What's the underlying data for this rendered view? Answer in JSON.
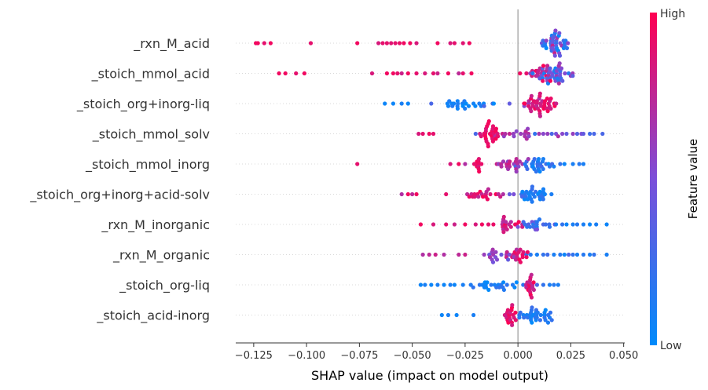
{
  "chart_data": {
    "type": "scatter",
    "subtype": "shap-beeswarm",
    "title": "",
    "xlabel": "SHAP value (impact on model output)",
    "ylabel": "",
    "xlim": [
      -0.1335,
      0.0505
    ],
    "xticks": [
      -0.125,
      -0.1,
      -0.075,
      -0.05,
      -0.025,
      0.0,
      0.025,
      0.05
    ],
    "xtick_labels": [
      "−0.125",
      "−0.100",
      "−0.075",
      "−0.050",
      "−0.025",
      "0.000",
      "0.025",
      "0.050"
    ],
    "zero_line": 0.0,
    "grid": false,
    "colorbar": {
      "title": "Feature value",
      "high_label": "High",
      "low_label": "Low",
      "high_color": "#ff0052",
      "mid_color": "#7b4fd9",
      "low_color": "#008bfb"
    },
    "features": [
      {
        "name": "_rxn_M_acid",
        "clusters": [
          {
            "center": 0.017,
            "spread": 0.004,
            "n": 38,
            "vmin": 0.0,
            "vmax": 0.55
          },
          {
            "center": 0.018,
            "spread": 0.002,
            "n": 6,
            "vmin": 0.55,
            "vmax": 0.8
          }
        ],
        "singles": [
          [
            -0.124,
            0.95
          ],
          [
            -0.123,
            0.95
          ],
          [
            -0.12,
            0.9
          ],
          [
            -0.117,
            0.95
          ],
          [
            -0.098,
            0.9
          ],
          [
            -0.076,
            0.95
          ],
          [
            -0.066,
            0.85
          ],
          [
            -0.064,
            0.9
          ],
          [
            -0.062,
            0.9
          ],
          [
            -0.06,
            0.88
          ],
          [
            -0.058,
            0.9
          ],
          [
            -0.056,
            0.92
          ],
          [
            -0.054,
            0.95
          ],
          [
            -0.051,
            0.95
          ],
          [
            -0.048,
            0.85
          ],
          [
            -0.038,
            0.95
          ],
          [
            -0.032,
            0.85
          ],
          [
            -0.03,
            0.9
          ],
          [
            -0.026,
            0.88
          ],
          [
            -0.023,
            0.95
          ]
        ]
      },
      {
        "name": "_stoich_mmol_acid",
        "clusters": [
          {
            "center": 0.016,
            "spread": 0.005,
            "n": 46,
            "vmin": 0.05,
            "vmax": 0.75
          },
          {
            "center": 0.012,
            "spread": 0.003,
            "n": 12,
            "vmin": 0.75,
            "vmax": 1.0
          }
        ],
        "singles": [
          [
            -0.113,
            0.95
          ],
          [
            -0.11,
            0.95
          ],
          [
            -0.105,
            0.9
          ],
          [
            -0.101,
            0.95
          ],
          [
            -0.069,
            0.85
          ],
          [
            -0.062,
            0.95
          ],
          [
            -0.059,
            0.95
          ],
          [
            -0.057,
            0.9
          ],
          [
            -0.055,
            0.8
          ],
          [
            -0.052,
            0.95
          ],
          [
            -0.048,
            0.9
          ],
          [
            -0.044,
            0.85
          ],
          [
            -0.04,
            0.9
          ],
          [
            -0.038,
            0.8
          ],
          [
            -0.033,
            0.95
          ],
          [
            -0.028,
            0.75
          ],
          [
            -0.026,
            0.9
          ],
          [
            -0.022,
            0.95
          ],
          [
            0.001,
            0.95
          ],
          [
            0.004,
            0.9
          ]
        ]
      },
      {
        "name": "_stoich_org+inorg-liq",
        "clusters": [
          {
            "center": 0.011,
            "spread": 0.004,
            "n": 40,
            "vmin": 0.7,
            "vmax": 1.0
          },
          {
            "center": -0.028,
            "spread": 0.006,
            "n": 22,
            "vmin": 0.0,
            "vmax": 0.15
          }
        ],
        "singles": [
          [
            -0.063,
            0.05
          ],
          [
            -0.059,
            0.05
          ],
          [
            -0.055,
            0.1
          ],
          [
            -0.052,
            0.05
          ],
          [
            -0.041,
            0.3
          ],
          [
            -0.016,
            0.3
          ],
          [
            -0.012,
            0.25
          ],
          [
            -0.004,
            0.4
          ],
          [
            0.003,
            0.55
          ],
          [
            0.005,
            0.6
          ]
        ]
      },
      {
        "name": "_stoich_mmol_solv",
        "clusters": [
          {
            "center": -0.013,
            "spread": 0.002,
            "n": 26,
            "vmin": 0.85,
            "vmax": 1.0
          },
          {
            "center": 0.0,
            "spread": 0.004,
            "n": 14,
            "vmin": 0.55,
            "vmax": 0.85
          }
        ],
        "singles": [
          [
            -0.047,
            0.85
          ],
          [
            -0.045,
            0.9
          ],
          [
            -0.042,
            0.95
          ],
          [
            -0.04,
            0.9
          ],
          [
            -0.02,
            0.3
          ],
          [
            -0.018,
            0.8
          ],
          [
            -0.006,
            0.7
          ],
          [
            0.005,
            0.7
          ],
          [
            0.008,
            0.2
          ],
          [
            0.01,
            0.65
          ],
          [
            0.012,
            0.55
          ],
          [
            0.014,
            0.6
          ],
          [
            0.016,
            0.3
          ],
          [
            0.018,
            0.5
          ],
          [
            0.019,
            0.7
          ],
          [
            0.021,
            0.55
          ],
          [
            0.023,
            0.4
          ],
          [
            0.026,
            0.6
          ],
          [
            0.028,
            0.35
          ],
          [
            0.03,
            0.5
          ],
          [
            0.031,
            0.4
          ],
          [
            0.034,
            0.25
          ],
          [
            0.036,
            0.3
          ],
          [
            0.04,
            0.3
          ]
        ]
      },
      {
        "name": "_stoich_mmol_inorg",
        "clusters": [
          {
            "center": -0.002,
            "spread": 0.003,
            "n": 20,
            "vmin": 0.55,
            "vmax": 0.85
          },
          {
            "center": 0.008,
            "spread": 0.004,
            "n": 26,
            "vmin": 0.0,
            "vmax": 0.3
          },
          {
            "center": -0.019,
            "spread": 0.001,
            "n": 10,
            "vmin": 0.85,
            "vmax": 1.0
          }
        ],
        "singles": [
          [
            -0.076,
            0.9
          ],
          [
            -0.032,
            0.85
          ],
          [
            -0.028,
            0.95
          ],
          [
            -0.025,
            0.7
          ],
          [
            -0.01,
            0.8
          ],
          [
            -0.008,
            0.75
          ],
          [
            0.012,
            0.1
          ],
          [
            0.015,
            0.2
          ],
          [
            0.017,
            0.1
          ],
          [
            0.02,
            0.2
          ],
          [
            0.022,
            0.05
          ],
          [
            0.026,
            0.1
          ],
          [
            0.029,
            0.15
          ],
          [
            0.031,
            0.1
          ]
        ]
      },
      {
        "name": "_stoich_org+inorg+acid-solv",
        "clusters": [
          {
            "center": 0.008,
            "spread": 0.003,
            "n": 28,
            "vmin": 0.0,
            "vmax": 0.25
          },
          {
            "center": -0.016,
            "spread": 0.004,
            "n": 18,
            "vmin": 0.75,
            "vmax": 1.0
          }
        ],
        "singles": [
          [
            -0.055,
            0.7
          ],
          [
            -0.052,
            0.95
          ],
          [
            -0.05,
            0.75
          ],
          [
            -0.048,
            0.95
          ],
          [
            -0.034,
            0.9
          ],
          [
            -0.024,
            0.75
          ],
          [
            -0.022,
            0.8
          ],
          [
            -0.007,
            0.7
          ],
          [
            -0.004,
            0.4
          ],
          [
            -0.002,
            0.5
          ],
          [
            0.002,
            0.3
          ]
        ]
      },
      {
        "name": "_rxn_M_inorganic",
        "clusters": [
          {
            "center": -0.004,
            "spread": 0.003,
            "n": 20,
            "vmin": 0.7,
            "vmax": 1.0
          },
          {
            "center": 0.008,
            "spread": 0.004,
            "n": 18,
            "vmin": 0.1,
            "vmax": 0.5
          }
        ],
        "singles": [
          [
            -0.046,
            0.95
          ],
          [
            -0.04,
            0.85
          ],
          [
            -0.034,
            0.9
          ],
          [
            -0.03,
            0.8
          ],
          [
            -0.025,
            0.95
          ],
          [
            -0.02,
            0.85
          ],
          [
            -0.017,
            0.95
          ],
          [
            -0.014,
            0.9
          ],
          [
            0.0,
            0.5
          ],
          [
            0.012,
            0.3
          ],
          [
            0.015,
            0.2
          ],
          [
            0.018,
            0.1
          ],
          [
            0.021,
            0.2
          ],
          [
            0.023,
            0.05
          ],
          [
            0.026,
            0.1
          ],
          [
            0.028,
            0.15
          ],
          [
            0.031,
            0.1
          ],
          [
            0.034,
            0.05
          ],
          [
            0.037,
            0.1
          ],
          [
            0.042,
            0.05
          ]
        ]
      },
      {
        "name": "_rxn_M_organic",
        "clusters": [
          {
            "center": -0.001,
            "spread": 0.003,
            "n": 18,
            "vmin": 0.7,
            "vmax": 1.0
          },
          {
            "center": -0.01,
            "spread": 0.004,
            "n": 16,
            "vmin": 0.4,
            "vmax": 0.7
          }
        ],
        "singles": [
          [
            -0.045,
            0.7
          ],
          [
            -0.042,
            0.75
          ],
          [
            -0.039,
            0.8
          ],
          [
            -0.035,
            0.7
          ],
          [
            -0.028,
            0.75
          ],
          [
            -0.025,
            0.8
          ],
          [
            0.004,
            0.2
          ],
          [
            0.006,
            0.15
          ],
          [
            0.009,
            0.1
          ],
          [
            0.012,
            0.2
          ],
          [
            0.014,
            0.25
          ],
          [
            0.017,
            0.1
          ],
          [
            0.02,
            0.15
          ],
          [
            0.022,
            0.05
          ],
          [
            0.024,
            0.3
          ],
          [
            0.026,
            0.2
          ],
          [
            0.028,
            0.1
          ],
          [
            0.031,
            0.15
          ],
          [
            0.034,
            0.1
          ],
          [
            0.036,
            0.2
          ],
          [
            0.042,
            0.1
          ]
        ]
      },
      {
        "name": "_stoich_org-liq",
        "clusters": [
          {
            "center": 0.006,
            "spread": 0.001,
            "n": 18,
            "vmin": 0.75,
            "vmax": 1.0
          },
          {
            "center": -0.01,
            "spread": 0.006,
            "n": 24,
            "vmin": 0.0,
            "vmax": 0.2
          }
        ],
        "singles": [
          [
            -0.046,
            0.05
          ],
          [
            -0.044,
            0.1
          ],
          [
            -0.041,
            0.05
          ],
          [
            -0.038,
            0.1
          ],
          [
            -0.035,
            0.05
          ],
          [
            -0.032,
            0.1
          ],
          [
            -0.03,
            0.05
          ],
          [
            -0.026,
            0.1
          ],
          [
            0.009,
            0.3
          ],
          [
            0.012,
            0.2
          ],
          [
            0.015,
            0.1
          ],
          [
            0.017,
            0.15
          ],
          [
            0.019,
            0.1
          ]
        ]
      },
      {
        "name": "_stoich_acid-inorg",
        "clusters": [
          {
            "center": -0.004,
            "spread": 0.002,
            "n": 20,
            "vmin": 0.8,
            "vmax": 1.0
          },
          {
            "center": 0.008,
            "spread": 0.004,
            "n": 32,
            "vmin": 0.0,
            "vmax": 0.25
          }
        ],
        "singles": [
          [
            -0.036,
            0.05
          ],
          [
            -0.033,
            0.1
          ],
          [
            -0.029,
            0.05
          ],
          [
            -0.021,
            0.1
          ],
          [
            0.013,
            0.15
          ],
          [
            0.015,
            0.1
          ]
        ]
      }
    ]
  }
}
